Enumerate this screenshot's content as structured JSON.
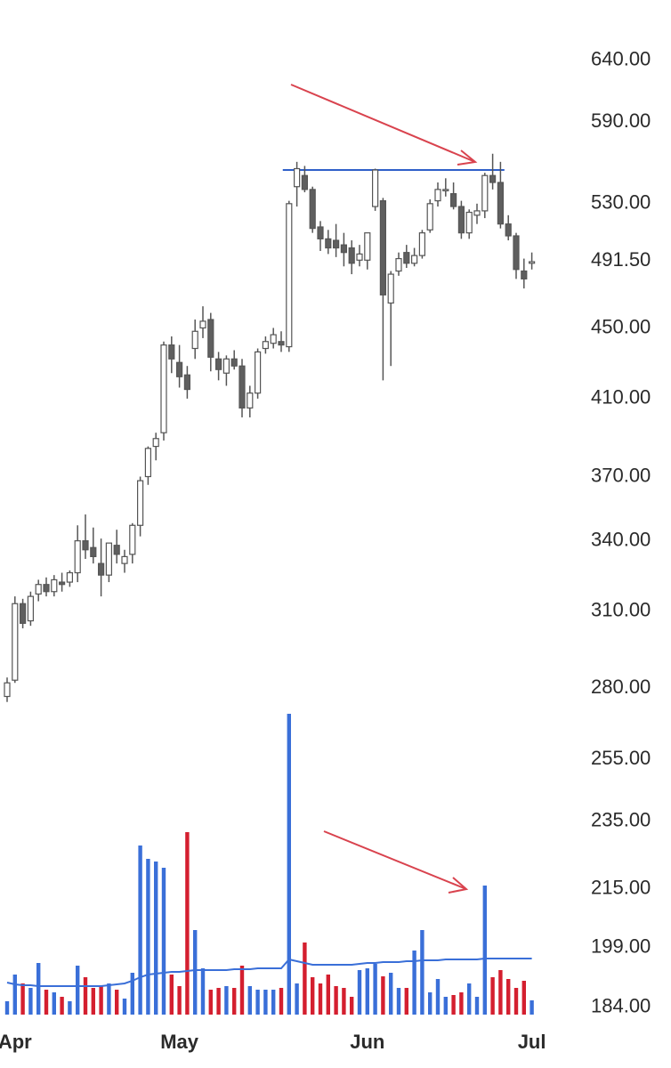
{
  "chart_data": {
    "type": "candlestick",
    "log_scale": true,
    "ylim": [
      182.2,
      693
    ],
    "yticks": [
      {
        "value": 640,
        "label": "640.00"
      },
      {
        "value": 590,
        "label": "590.00"
      },
      {
        "value": 530,
        "label": "530.00"
      },
      {
        "value": 491.5,
        "label": "491.50"
      },
      {
        "value": 450,
        "label": "450.00"
      },
      {
        "value": 410,
        "label": "410.00"
      },
      {
        "value": 370,
        "label": "370.00"
      },
      {
        "value": 340,
        "label": "340.00"
      },
      {
        "value": 310,
        "label": "310.00"
      },
      {
        "value": 280,
        "label": "280.00"
      },
      {
        "value": 255,
        "label": "255.00"
      },
      {
        "value": 235,
        "label": "235.00"
      },
      {
        "value": 215,
        "label": "215.00"
      },
      {
        "value": 199,
        "label": "199.00"
      },
      {
        "value": 184,
        "label": "184.00"
      }
    ],
    "categories": [
      null,
      "Apr",
      null,
      null,
      null,
      null,
      null,
      null,
      null,
      null,
      null,
      null,
      null,
      null,
      null,
      null,
      null,
      null,
      null,
      null,
      null,
      null,
      "May",
      null,
      null,
      null,
      null,
      null,
      null,
      null,
      null,
      null,
      null,
      null,
      null,
      null,
      null,
      null,
      null,
      null,
      null,
      null,
      null,
      null,
      null,
      null,
      "Jun",
      null,
      null,
      null,
      null,
      null,
      null,
      null,
      null,
      null,
      null,
      null,
      null,
      null,
      null,
      null,
      null,
      null,
      null,
      null,
      null,
      "Jul"
    ],
    "open": [
      277,
      283,
      313,
      306,
      317,
      321,
      318,
      322,
      322,
      326,
      340,
      337,
      330,
      325,
      338,
      330,
      334,
      347,
      370,
      385,
      392,
      440,
      430,
      423,
      438,
      450,
      455,
      432,
      424,
      432,
      428,
      405,
      413,
      438,
      441,
      442,
      439,
      542,
      550,
      540,
      514,
      506,
      505,
      502,
      500,
      492,
      492,
      528,
      532,
      465,
      485,
      497,
      490,
      495,
      512,
      532,
      540,
      537,
      528,
      510,
      522,
      525,
      550,
      545,
      516,
      508,
      485,
      490
    ],
    "high": [
      284,
      316,
      315,
      318,
      323,
      324,
      325,
      326,
      327,
      347,
      352,
      346,
      341,
      338,
      345,
      336,
      348,
      370,
      385,
      392,
      442,
      445,
      440,
      428,
      455,
      463,
      459,
      436,
      434,
      437,
      432,
      417,
      438,
      445,
      450,
      448,
      532,
      560,
      557,
      542,
      518,
      512,
      516,
      510,
      505,
      502,
      510,
      555,
      534,
      485,
      497,
      502,
      500,
      512,
      533,
      545,
      548,
      545,
      532,
      526,
      530,
      552,
      566,
      560,
      522,
      510,
      493,
      497
    ],
    "low": [
      275,
      282,
      303,
      304,
      314,
      316,
      316,
      318,
      320,
      322,
      332,
      330,
      316,
      322,
      330,
      326,
      330,
      342,
      366,
      378,
      388,
      424,
      416,
      410,
      432,
      444,
      425,
      420,
      417,
      426,
      400,
      400,
      410,
      435,
      438,
      436,
      436,
      528,
      538,
      510,
      498,
      496,
      494,
      488,
      483,
      488,
      486,
      525,
      420,
      428,
      482,
      487,
      488,
      493,
      510,
      528,
      535,
      526,
      506,
      506,
      516,
      520,
      540,
      513,
      505,
      480,
      474,
      486
    ],
    "close": [
      282,
      313,
      305,
      316,
      321,
      318,
      323,
      321,
      326,
      340,
      336,
      333,
      325,
      339,
      334,
      333,
      347,
      368,
      384,
      389,
      440,
      432,
      422,
      415,
      448,
      454,
      433,
      426,
      432,
      428,
      405,
      413,
      436,
      442,
      446,
      440,
      530,
      555,
      540,
      513,
      506,
      500,
      500,
      497,
      490,
      496,
      510,
      554,
      470,
      483,
      493,
      490,
      495,
      510,
      530,
      540,
      540,
      528,
      510,
      524,
      525,
      550,
      545,
      516,
      508,
      486,
      480,
      491
    ],
    "volume": [
      15,
      45,
      35,
      30,
      58,
      28,
      25,
      20,
      15,
      55,
      42,
      30,
      32,
      35,
      28,
      18,
      47,
      190,
      175,
      172,
      165,
      45,
      32,
      205,
      95,
      52,
      28,
      30,
      32,
      30,
      55,
      32,
      28,
      28,
      28,
      30,
      338,
      35,
      81,
      42,
      35,
      45,
      32,
      30,
      20,
      50,
      52,
      57,
      43,
      47,
      30,
      30,
      72,
      95,
      25,
      40,
      20,
      22,
      25,
      35,
      20,
      145,
      42,
      50,
      40,
      30,
      38,
      16
    ],
    "volume_ma": [
      36,
      34,
      33,
      33,
      32,
      32,
      32,
      32,
      32,
      32,
      32,
      32,
      32,
      33,
      34,
      35,
      38,
      42,
      45,
      46,
      47,
      48,
      48,
      49,
      50,
      50,
      50,
      50,
      50,
      51,
      51,
      51,
      52,
      52,
      52,
      52,
      62,
      60,
      58,
      56,
      56,
      56,
      56,
      56,
      56,
      57,
      58,
      58,
      59,
      59,
      59,
      60,
      60,
      61,
      61,
      61,
      62,
      62,
      62,
      62,
      62,
      63,
      63,
      63,
      63,
      63,
      63,
      63
    ],
    "up_color": "#3a6fd8",
    "down_color": "#d41f2f",
    "level": 554,
    "level_color": "#2f5fc9"
  }
}
